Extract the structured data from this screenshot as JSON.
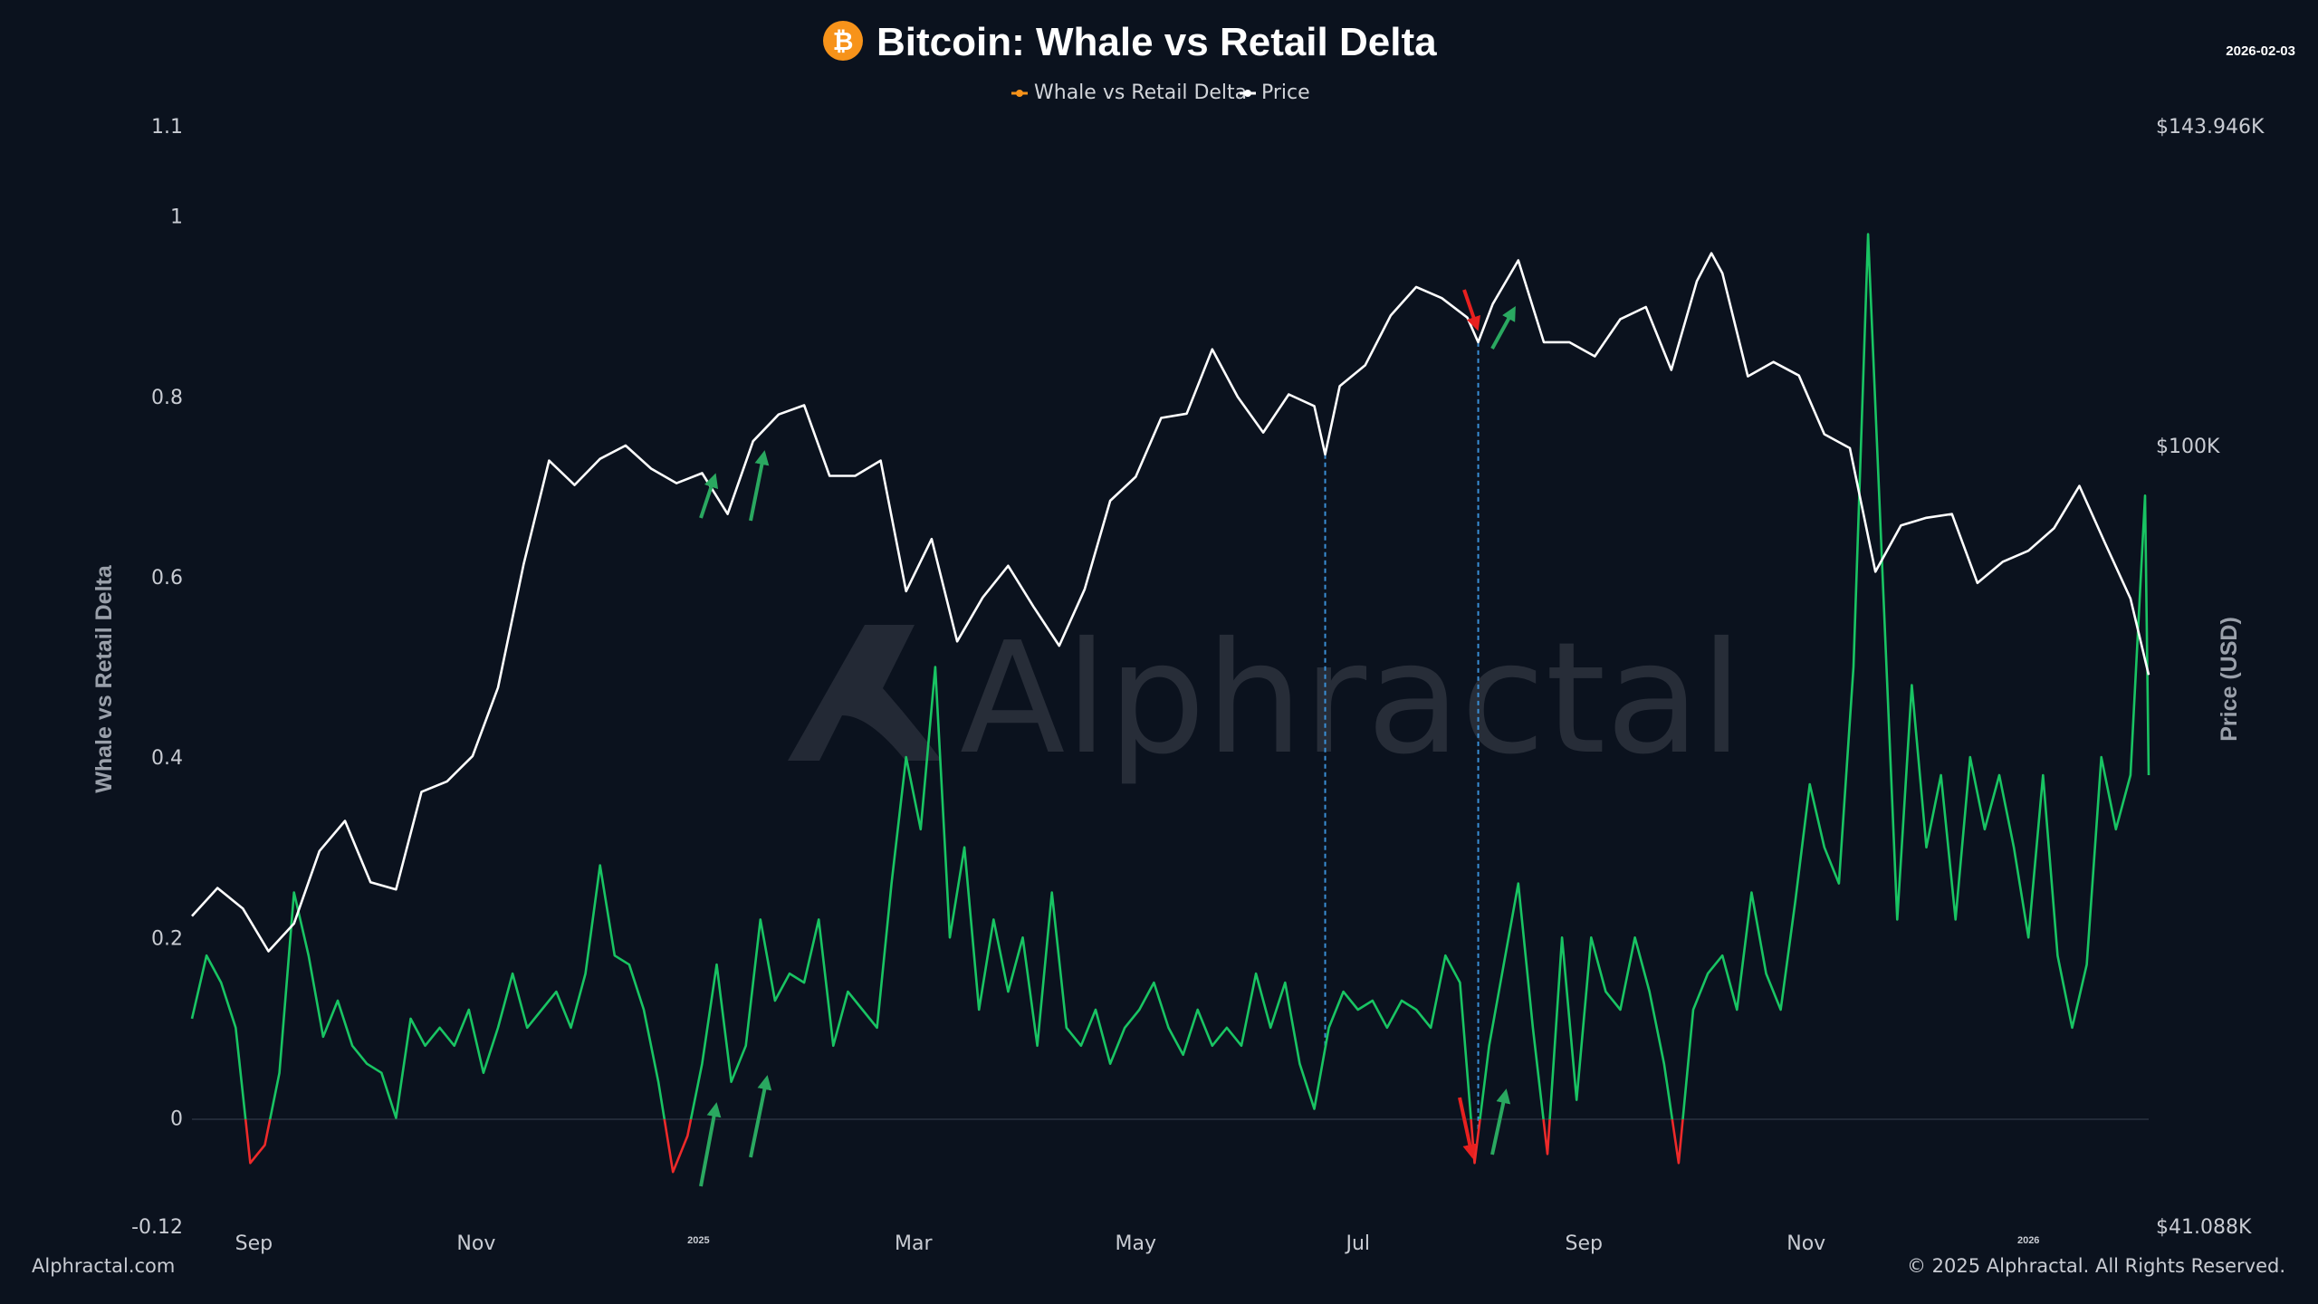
{
  "header": {
    "title": "Bitcoin: Whale vs Retail Delta",
    "date": "2026-02-03",
    "logo_icon": "bitcoin-icon"
  },
  "legend": {
    "delta_label": "Whale vs Retail Delta",
    "price_label": "Price"
  },
  "footer": {
    "site": "Alphractal.com",
    "copyright": "© 2025 Alphractal. All Rights Reserved.",
    "watermark": "Alphractal"
  },
  "chart_data": {
    "type": "line",
    "title": "Bitcoin: Whale vs Retail Delta",
    "xlabel": "",
    "ylabel": "Whale vs Retail Delta",
    "y2label": "Price (USD)",
    "ylim": [
      -0.12,
      1.1
    ],
    "y2lim": [
      41088,
      143946
    ],
    "y2scale": "log",
    "grid": false,
    "legend_position": "top-center",
    "y_ticks": [
      "1.1",
      "1",
      "0.8",
      "0.6",
      "0.4",
      "0.2",
      "0",
      "-0.12"
    ],
    "y_tick_values": [
      1.1,
      1,
      0.8,
      0.6,
      0.4,
      0.2,
      0,
      -0.12
    ],
    "y2_ticks": [
      "$143.946K",
      "$100K",
      "$41.088K"
    ],
    "y2_tick_values": [
      143946,
      100000,
      41088
    ],
    "x_range": [
      "2024-08-15",
      "2026-02-03"
    ],
    "x_ticks": [
      {
        "label": "Sep",
        "date": "2024-09-01"
      },
      {
        "label": "Nov",
        "date": "2024-11-01"
      },
      {
        "label": "2025",
        "date": "2025-01-01",
        "year": true
      },
      {
        "label": "Mar",
        "date": "2025-03-01"
      },
      {
        "label": "May",
        "date": "2025-05-01"
      },
      {
        "label": "Jul",
        "date": "2025-07-01"
      },
      {
        "label": "Sep",
        "date": "2025-09-01"
      },
      {
        "label": "Nov",
        "date": "2025-11-01"
      },
      {
        "label": "2026",
        "date": "2026-01-01",
        "year": true
      }
    ],
    "colors": {
      "delta_positive": "#19c463",
      "delta_negative": "#ee2a2a",
      "price": "#ffffff",
      "legend_delta": "#f7931a",
      "annotation_line": "#3a8fd6",
      "arrow_up": "#2aa860",
      "arrow_down": "#e8201f"
    },
    "series": [
      {
        "name": "Whale vs Retail Delta",
        "start": "2024-08-15",
        "step_days": 4,
        "values": [
          0.11,
          0.18,
          0.15,
          0.1,
          -0.05,
          -0.03,
          0.05,
          0.25,
          0.18,
          0.09,
          0.13,
          0.08,
          0.06,
          0.05,
          0.0,
          0.11,
          0.08,
          0.1,
          0.08,
          0.12,
          0.05,
          0.1,
          0.16,
          0.1,
          0.12,
          0.14,
          0.1,
          0.16,
          0.28,
          0.18,
          0.17,
          0.12,
          0.04,
          -0.06,
          -0.02,
          0.06,
          0.17,
          0.04,
          0.08,
          0.22,
          0.13,
          0.16,
          0.15,
          0.22,
          0.08,
          0.14,
          0.12,
          0.1,
          0.26,
          0.4,
          0.32,
          0.5,
          0.2,
          0.3,
          0.12,
          0.22,
          0.14,
          0.2,
          0.08,
          0.25,
          0.1,
          0.08,
          0.12,
          0.06,
          0.1,
          0.12,
          0.15,
          0.1,
          0.07,
          0.12,
          0.08,
          0.1,
          0.08,
          0.16,
          0.1,
          0.15,
          0.06,
          0.01,
          0.1,
          0.14,
          0.12,
          0.13,
          0.1,
          0.13,
          0.12,
          0.1,
          0.18,
          0.15,
          -0.05,
          0.08,
          0.17,
          0.26,
          0.1,
          -0.04,
          0.2,
          0.02,
          0.2,
          0.14,
          0.12,
          0.2,
          0.14,
          0.06,
          -0.05,
          0.12,
          0.16,
          0.18,
          0.12,
          0.25,
          0.16,
          0.12,
          0.24,
          0.37,
          0.3,
          0.26,
          0.5,
          0.98,
          0.6,
          0.22,
          0.48,
          0.3,
          0.38,
          0.22,
          0.4,
          0.32,
          0.38,
          0.3,
          0.2,
          0.38,
          0.18,
          0.1,
          0.17,
          0.4,
          0.32,
          0.38,
          0.69,
          0.38
        ]
      },
      {
        "name": "Price",
        "points": [
          [
            "2024-08-15",
            58500
          ],
          [
            "2024-08-22",
            60400
          ],
          [
            "2024-08-29",
            59000
          ],
          [
            "2024-09-05",
            56200
          ],
          [
            "2024-09-12",
            58000
          ],
          [
            "2024-09-19",
            63000
          ],
          [
            "2024-09-26",
            65200
          ],
          [
            "2024-10-03",
            60800
          ],
          [
            "2024-10-10",
            60300
          ],
          [
            "2024-10-17",
            67400
          ],
          [
            "2024-10-24",
            68200
          ],
          [
            "2024-10-31",
            70200
          ],
          [
            "2024-11-07",
            75900
          ],
          [
            "2024-11-14",
            87300
          ],
          [
            "2024-11-21",
            98300
          ],
          [
            "2024-11-28",
            95600
          ],
          [
            "2024-12-05",
            98500
          ],
          [
            "2024-12-12",
            100000
          ],
          [
            "2024-12-19",
            97400
          ],
          [
            "2024-12-26",
            95800
          ],
          [
            "2025-01-02",
            96900
          ],
          [
            "2025-01-09",
            92500
          ],
          [
            "2025-01-16",
            100500
          ],
          [
            "2025-01-23",
            103600
          ],
          [
            "2025-01-30",
            104700
          ],
          [
            "2025-02-06",
            96600
          ],
          [
            "2025-02-13",
            96600
          ],
          [
            "2025-02-20",
            98300
          ],
          [
            "2025-02-27",
            84700
          ],
          [
            "2025-03-06",
            89900
          ],
          [
            "2025-03-13",
            80000
          ],
          [
            "2025-03-20",
            84100
          ],
          [
            "2025-03-27",
            87200
          ],
          [
            "2025-04-03",
            83200
          ],
          [
            "2025-04-10",
            79600
          ],
          [
            "2025-04-17",
            84900
          ],
          [
            "2025-04-24",
            93900
          ],
          [
            "2025-05-01",
            96500
          ],
          [
            "2025-05-08",
            103200
          ],
          [
            "2025-05-15",
            103700
          ],
          [
            "2025-05-22",
            111600
          ],
          [
            "2025-05-29",
            105700
          ],
          [
            "2025-06-05",
            101500
          ],
          [
            "2025-06-12",
            106000
          ],
          [
            "2025-06-19",
            104600
          ],
          [
            "2025-06-22",
            99000
          ],
          [
            "2025-06-26",
            107000
          ],
          [
            "2025-07-03",
            109600
          ],
          [
            "2025-07-10",
            116000
          ],
          [
            "2025-07-17",
            119800
          ],
          [
            "2025-07-24",
            118300
          ],
          [
            "2025-07-31",
            115700
          ],
          [
            "2025-08-03",
            112500
          ],
          [
            "2025-08-07",
            117500
          ],
          [
            "2025-08-14",
            123500
          ],
          [
            "2025-08-21",
            112500
          ],
          [
            "2025-08-28",
            112500
          ],
          [
            "2025-09-04",
            110700
          ],
          [
            "2025-09-11",
            115500
          ],
          [
            "2025-09-18",
            117100
          ],
          [
            "2025-09-25",
            109000
          ],
          [
            "2025-10-02",
            120600
          ],
          [
            "2025-10-06",
            124500
          ],
          [
            "2025-10-09",
            121700
          ],
          [
            "2025-10-16",
            108200
          ],
          [
            "2025-10-23",
            110000
          ],
          [
            "2025-10-30",
            108300
          ],
          [
            "2025-11-06",
            101300
          ],
          [
            "2025-11-13",
            99700
          ],
          [
            "2025-11-20",
            86600
          ],
          [
            "2025-11-27",
            91300
          ],
          [
            "2025-12-04",
            92100
          ],
          [
            "2025-12-11",
            92500
          ],
          [
            "2025-12-18",
            85500
          ],
          [
            "2025-12-25",
            87600
          ],
          [
            "2026-01-01",
            88700
          ],
          [
            "2026-01-08",
            91000
          ],
          [
            "2026-01-15",
            95500
          ],
          [
            "2026-01-22",
            89500
          ],
          [
            "2026-01-29",
            84000
          ],
          [
            "2026-02-03",
            77000
          ]
        ]
      }
    ],
    "annotations": [
      {
        "type": "vline",
        "date": "2025-06-22"
      },
      {
        "type": "vline",
        "date": "2025-08-03"
      }
    ]
  }
}
